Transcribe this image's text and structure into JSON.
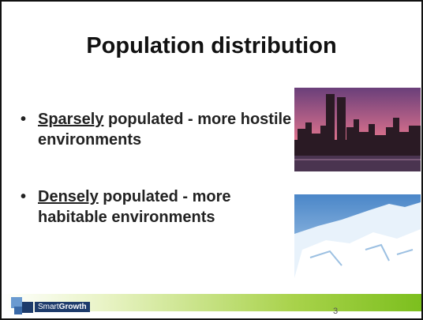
{
  "title": "Population distribution",
  "bullets": [
    {
      "emphasis": "Sparsely",
      "text": " populated - more hostile environments"
    },
    {
      "emphasis": "Densely",
      "text": " populated - more habitable environments"
    }
  ],
  "footer": {
    "logo_light": "Smart",
    "logo_bold": "Growth",
    "page_number": "3"
  }
}
